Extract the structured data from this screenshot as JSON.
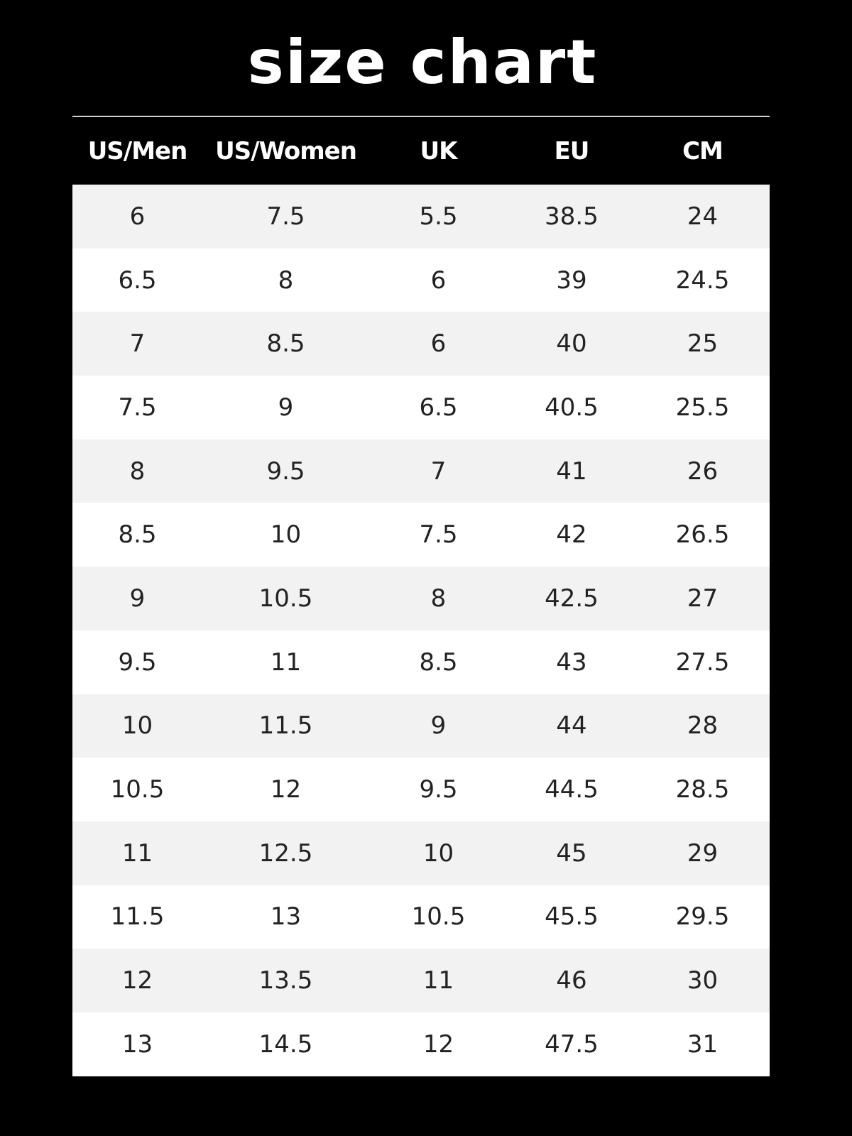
{
  "title": "size chart",
  "colors": {
    "background": "#000000",
    "header_bg": "#000000",
    "header_text": "#ffffff",
    "row_alt": "#f2f2f2",
    "row": "#ffffff",
    "text": "#222222"
  },
  "chart_data": {
    "type": "table",
    "title": "size chart",
    "columns": [
      "US/Men",
      "US/Women",
      "UK",
      "EU",
      "CM"
    ],
    "rows": [
      [
        "6",
        "7.5",
        "5.5",
        "38.5",
        "24"
      ],
      [
        "6.5",
        "8",
        "6",
        "39",
        "24.5"
      ],
      [
        "7",
        "8.5",
        "6",
        "40",
        "25"
      ],
      [
        "7.5",
        "9",
        "6.5",
        "40.5",
        "25.5"
      ],
      [
        "8",
        "9.5",
        "7",
        "41",
        "26"
      ],
      [
        "8.5",
        "10",
        "7.5",
        "42",
        "26.5"
      ],
      [
        "9",
        "10.5",
        "8",
        "42.5",
        "27"
      ],
      [
        "9.5",
        "11",
        "8.5",
        "43",
        "27.5"
      ],
      [
        "10",
        "11.5",
        "9",
        "44",
        "28"
      ],
      [
        "10.5",
        "12",
        "9.5",
        "44.5",
        "28.5"
      ],
      [
        "11",
        "12.5",
        "10",
        "45",
        "29"
      ],
      [
        "11.5",
        "13",
        "10.5",
        "45.5",
        "29.5"
      ],
      [
        "12",
        "13.5",
        "11",
        "46",
        "30"
      ],
      [
        "13",
        "14.5",
        "12",
        "47.5",
        "31"
      ]
    ]
  }
}
